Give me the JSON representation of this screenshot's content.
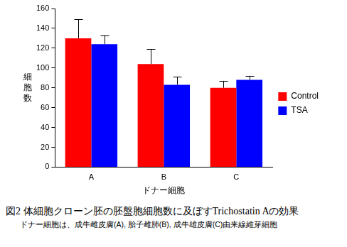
{
  "chart_data": {
    "type": "bar",
    "title": "図2 体細胞クローン胚の胚盤胞細胞数に及ぼすTrichostatin Aの効果",
    "subtitle": "ドナー細胞は、成牛雌皮膚(A), 胎子雌肺(B), 成牛雄皮膚(C)由来線維芽細胞",
    "x_label": "ドナー細胞",
    "y_label": "細胞数",
    "categories": [
      "A",
      "B",
      "C"
    ],
    "series": [
      {
        "name": "Control",
        "color": "#ff0000",
        "values": [
          130,
          104,
          80
        ],
        "errors": [
          19,
          15,
          7
        ]
      },
      {
        "name": "TSA",
        "color": "#0000ff",
        "values": [
          124,
          83,
          88
        ],
        "errors": [
          9,
          8,
          4
        ]
      }
    ],
    "ylim": [
      0,
      160
    ],
    "yticks": [
      0,
      20,
      40,
      60,
      80,
      100,
      120,
      140,
      160
    ],
    "grid": false,
    "legend": "right"
  }
}
